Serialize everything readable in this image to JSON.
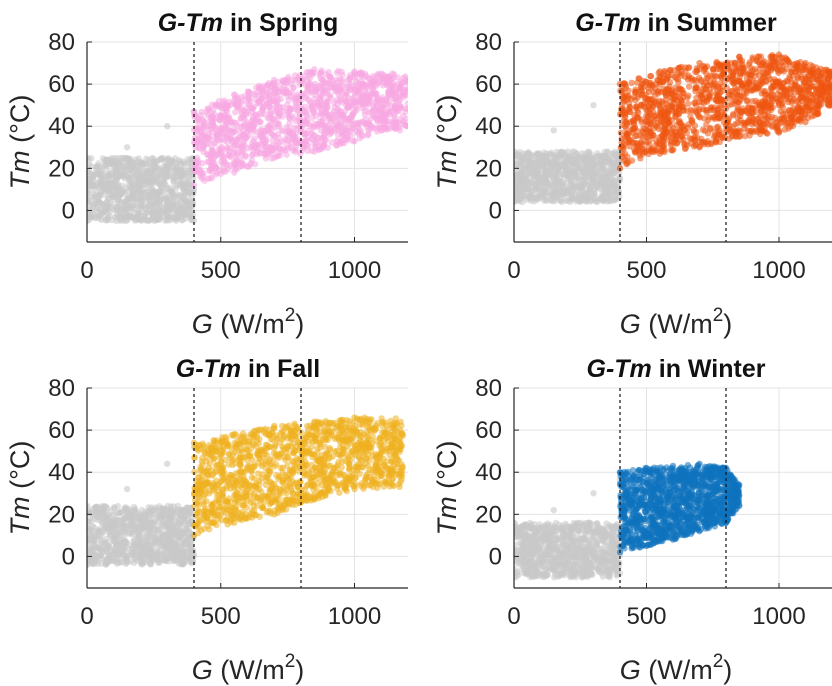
{
  "chart_data": [
    {
      "type": "scatter",
      "title": {
        "var": "G-Tm",
        "rest": " in Spring"
      },
      "xlabel": {
        "var": "G",
        "unit": " (W/m",
        "sup": "2",
        "close": ")"
      },
      "ylabel": {
        "var": "Tm",
        "unit": " (°C)"
      },
      "xlim": [
        0,
        1200
      ],
      "ylim": [
        -15,
        80
      ],
      "xticks": [
        "0",
        "500",
        "1000"
      ],
      "yticks": [
        "0",
        "20",
        "40",
        "60",
        "80"
      ],
      "grid": true,
      "thresholds": [
        400,
        800
      ],
      "series": [
        {
          "color": "#c8c8c8",
          "points": [
            [
              0,
              -5
            ],
            [
              0,
              25
            ],
            [
              0,
              8
            ],
            [
              150,
              -3
            ],
            [
              150,
              30
            ],
            [
              300,
              1
            ],
            [
              300,
              40
            ],
            [
              400,
              10
            ],
            [
              400,
              47
            ]
          ]
        },
        {
          "color": "#f7a8e2",
          "points": [
            [
              400,
              12
            ],
            [
              400,
              47
            ],
            [
              550,
              18
            ],
            [
              550,
              55
            ],
            [
              700,
              25
            ],
            [
              700,
              62
            ],
            [
              850,
              28
            ],
            [
              850,
              67
            ],
            [
              1000,
              33
            ],
            [
              1000,
              66
            ],
            [
              1100,
              38
            ],
            [
              1100,
              65
            ],
            [
              1150,
              48
            ],
            [
              1170,
              58
            ],
            [
              1200,
              40
            ]
          ]
        }
      ]
    },
    {
      "type": "scatter",
      "title": {
        "var": "G-Tm",
        "rest": " in Summer"
      },
      "xlabel": {
        "var": "G",
        "unit": " (W/m",
        "sup": "2",
        "close": ")"
      },
      "ylabel": {
        "var": "Tm",
        "unit": " (°C)"
      },
      "xlim": [
        0,
        1200
      ],
      "ylim": [
        -15,
        80
      ],
      "xticks": [
        "0",
        "500",
        "1000"
      ],
      "yticks": [
        "0",
        "20",
        "40",
        "60",
        "80"
      ],
      "grid": true,
      "thresholds": [
        400,
        800
      ],
      "series": [
        {
          "color": "#c8c8c8",
          "points": [
            [
              0,
              4
            ],
            [
              0,
              28
            ],
            [
              0,
              15
            ],
            [
              150,
              8
            ],
            [
              150,
              38
            ],
            [
              300,
              15
            ],
            [
              300,
              50
            ],
            [
              400,
              20
            ],
            [
              400,
              57
            ]
          ]
        },
        {
          "color": "#ee5511",
          "points": [
            [
              400,
              20
            ],
            [
              400,
              60
            ],
            [
              550,
              27
            ],
            [
              550,
              66
            ],
            [
              700,
              30
            ],
            [
              700,
              70
            ],
            [
              850,
              35
            ],
            [
              850,
              73
            ],
            [
              1000,
              37
            ],
            [
              1000,
              74
            ],
            [
              1100,
              42
            ],
            [
              1100,
              70
            ],
            [
              1200,
              50
            ],
            [
              1200,
              66
            ]
          ]
        }
      ]
    },
    {
      "type": "scatter",
      "title": {
        "var": "G-Tm",
        "rest": " in Fall"
      },
      "xlabel": {
        "var": "G",
        "unit": " (W/m",
        "sup": "2",
        "close": ")"
      },
      "ylabel": {
        "var": "Tm",
        "unit": " (°C)"
      },
      "xlim": [
        0,
        1200
      ],
      "ylim": [
        -15,
        80
      ],
      "xticks": [
        "0",
        "500",
        "1000"
      ],
      "yticks": [
        "0",
        "20",
        "40",
        "60",
        "80"
      ],
      "grid": true,
      "thresholds": [
        400,
        800
      ],
      "series": [
        {
          "color": "#c8c8c8",
          "points": [
            [
              0,
              -4
            ],
            [
              0,
              24
            ],
            [
              0,
              8
            ],
            [
              150,
              0
            ],
            [
              150,
              32
            ],
            [
              300,
              5
            ],
            [
              300,
              44
            ],
            [
              400,
              10
            ],
            [
              400,
              52
            ]
          ]
        },
        {
          "color": "#eeb01f",
          "points": [
            [
              400,
              10
            ],
            [
              400,
              54
            ],
            [
              550,
              16
            ],
            [
              550,
              58
            ],
            [
              700,
              20
            ],
            [
              700,
              62
            ],
            [
              850,
              27
            ],
            [
              850,
              64
            ],
            [
              1000,
              32
            ],
            [
              1000,
              66
            ],
            [
              1100,
              40
            ],
            [
              1150,
              60
            ],
            [
              1180,
              58
            ]
          ]
        }
      ]
    },
    {
      "type": "scatter",
      "title": {
        "var": "G-Tm",
        "rest": " in Winter"
      },
      "xlabel": {
        "var": "G",
        "unit": " (W/m",
        "sup": "2",
        "close": ")"
      },
      "ylabel": {
        "var": "Tm",
        "unit": " (°C)"
      },
      "xlim": [
        0,
        1200
      ],
      "ylim": [
        -15,
        80
      ],
      "xticks": [
        "0",
        "500",
        "1000"
      ],
      "yticks": [
        "0",
        "20",
        "40",
        "60",
        "80"
      ],
      "grid": true,
      "thresholds": [
        400,
        800
      ],
      "series": [
        {
          "color": "#c8c8c8",
          "points": [
            [
              0,
              -10
            ],
            [
              0,
              16
            ],
            [
              0,
              3
            ],
            [
              150,
              -6
            ],
            [
              150,
              22
            ],
            [
              300,
              0
            ],
            [
              300,
              30
            ],
            [
              400,
              2
            ],
            [
              400,
              36
            ]
          ]
        },
        {
          "color": "#0f72bd",
          "points": [
            [
              400,
              2
            ],
            [
              400,
              40
            ],
            [
              500,
              5
            ],
            [
              500,
              42
            ],
            [
              600,
              8
            ],
            [
              600,
              43
            ],
            [
              700,
              12
            ],
            [
              700,
              44
            ],
            [
              800,
              16
            ],
            [
              800,
              42
            ],
            [
              850,
              24
            ],
            [
              850,
              34
            ]
          ]
        }
      ]
    }
  ]
}
